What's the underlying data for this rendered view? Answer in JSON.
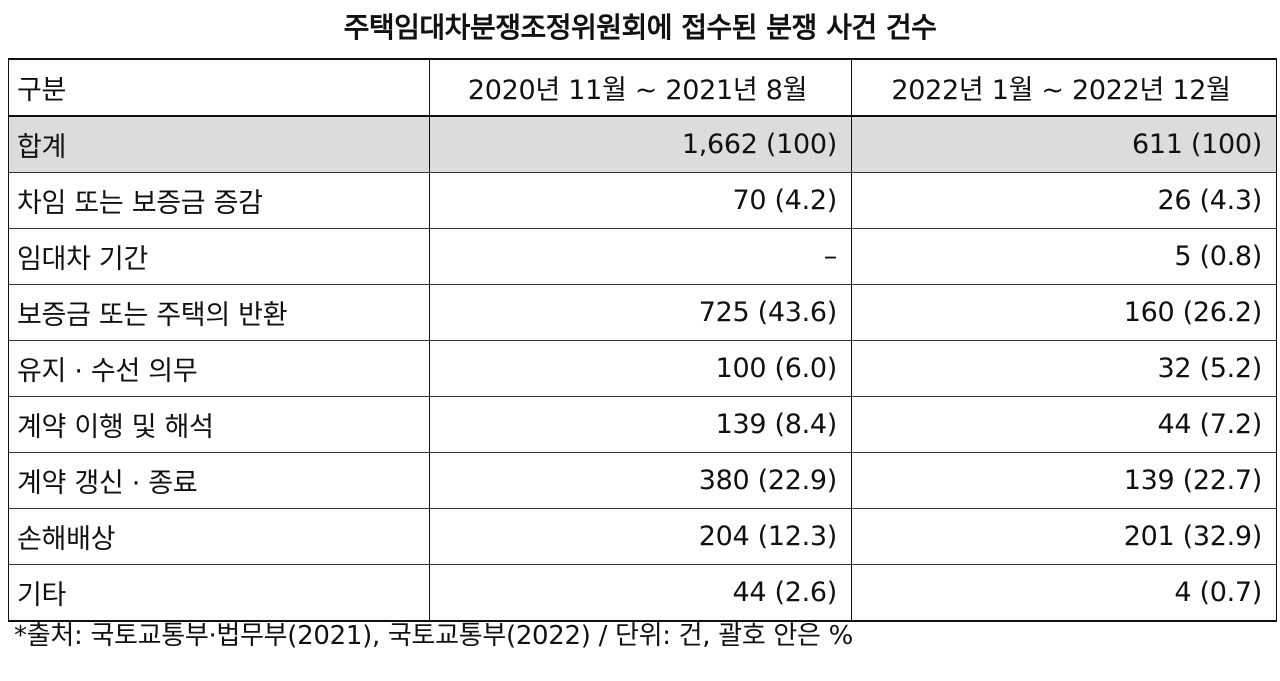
{
  "title": "주택임대차분쟁조정위원회에 접수된 분쟁 사건 건수",
  "table": {
    "header": [
      "구분",
      "2020년 11월 ~ 2021년 8월",
      "2022년 1월 ~ 2022년 12월"
    ],
    "rows": [
      {
        "label": "합계",
        "period1": "1,662 (100)",
        "period2": "611 (100)"
      },
      {
        "label": "차임 또는 보증금 증감",
        "period1": "70 (4.2)",
        "period2": "26 (4.3)"
      },
      {
        "label": "임대차 기간",
        "period1": "–",
        "period2": "5 (0.8)"
      },
      {
        "label": "보증금 또는 주택의 반환",
        "period1": "725 (43.6)",
        "period2": "160 (26.2)"
      },
      {
        "label": "유지 · 수선 의무",
        "period1": "100 (6.0)",
        "period2": "32 (5.2)"
      },
      {
        "label": "계약 이행 및 해석",
        "period1": "139 (8.4)",
        "period2": "44 (7.2)"
      },
      {
        "label": "계약 갱신 · 종료",
        "period1": "380 (22.9)",
        "period2": "139 (22.7)"
      },
      {
        "label": "손해배상",
        "period1": "204 (12.3)",
        "period2": "201 (32.9)"
      },
      {
        "label": "기타",
        "period1": "44 (2.6)",
        "period2": "4 (0.7)"
      }
    ]
  },
  "note": "*출처: 국토교통부·법무부(2021), 국토교통부(2022) / 단위: 건, 괄호 안은 %",
  "colors": {
    "total_row_bg": "#dcdcdc",
    "text": "#111111",
    "border": "#111111"
  }
}
